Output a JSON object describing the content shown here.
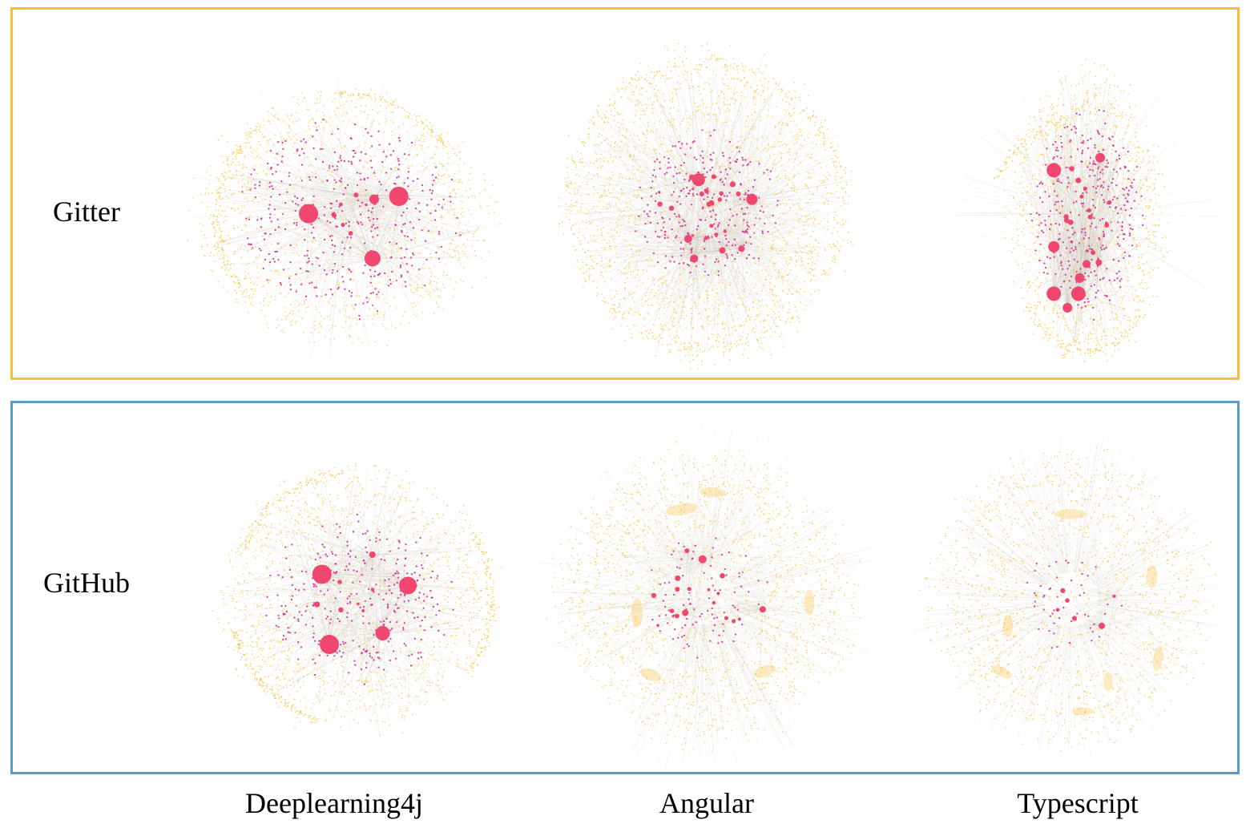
{
  "rows": {
    "gitter": {
      "label": "Gitter",
      "border_color": "#f2c13c"
    },
    "github": {
      "label": "GitHub",
      "border_color": "#5b9ac9"
    }
  },
  "columns": [
    {
      "label": "Deeplearning4j"
    },
    {
      "label": "Angular"
    },
    {
      "label": "Typescript"
    }
  ],
  "colors": {
    "hub": "#ef476f",
    "node_magenta": "#d0358d",
    "node_yellow": "#f9c74f",
    "edge": "#c8c0b4"
  }
}
